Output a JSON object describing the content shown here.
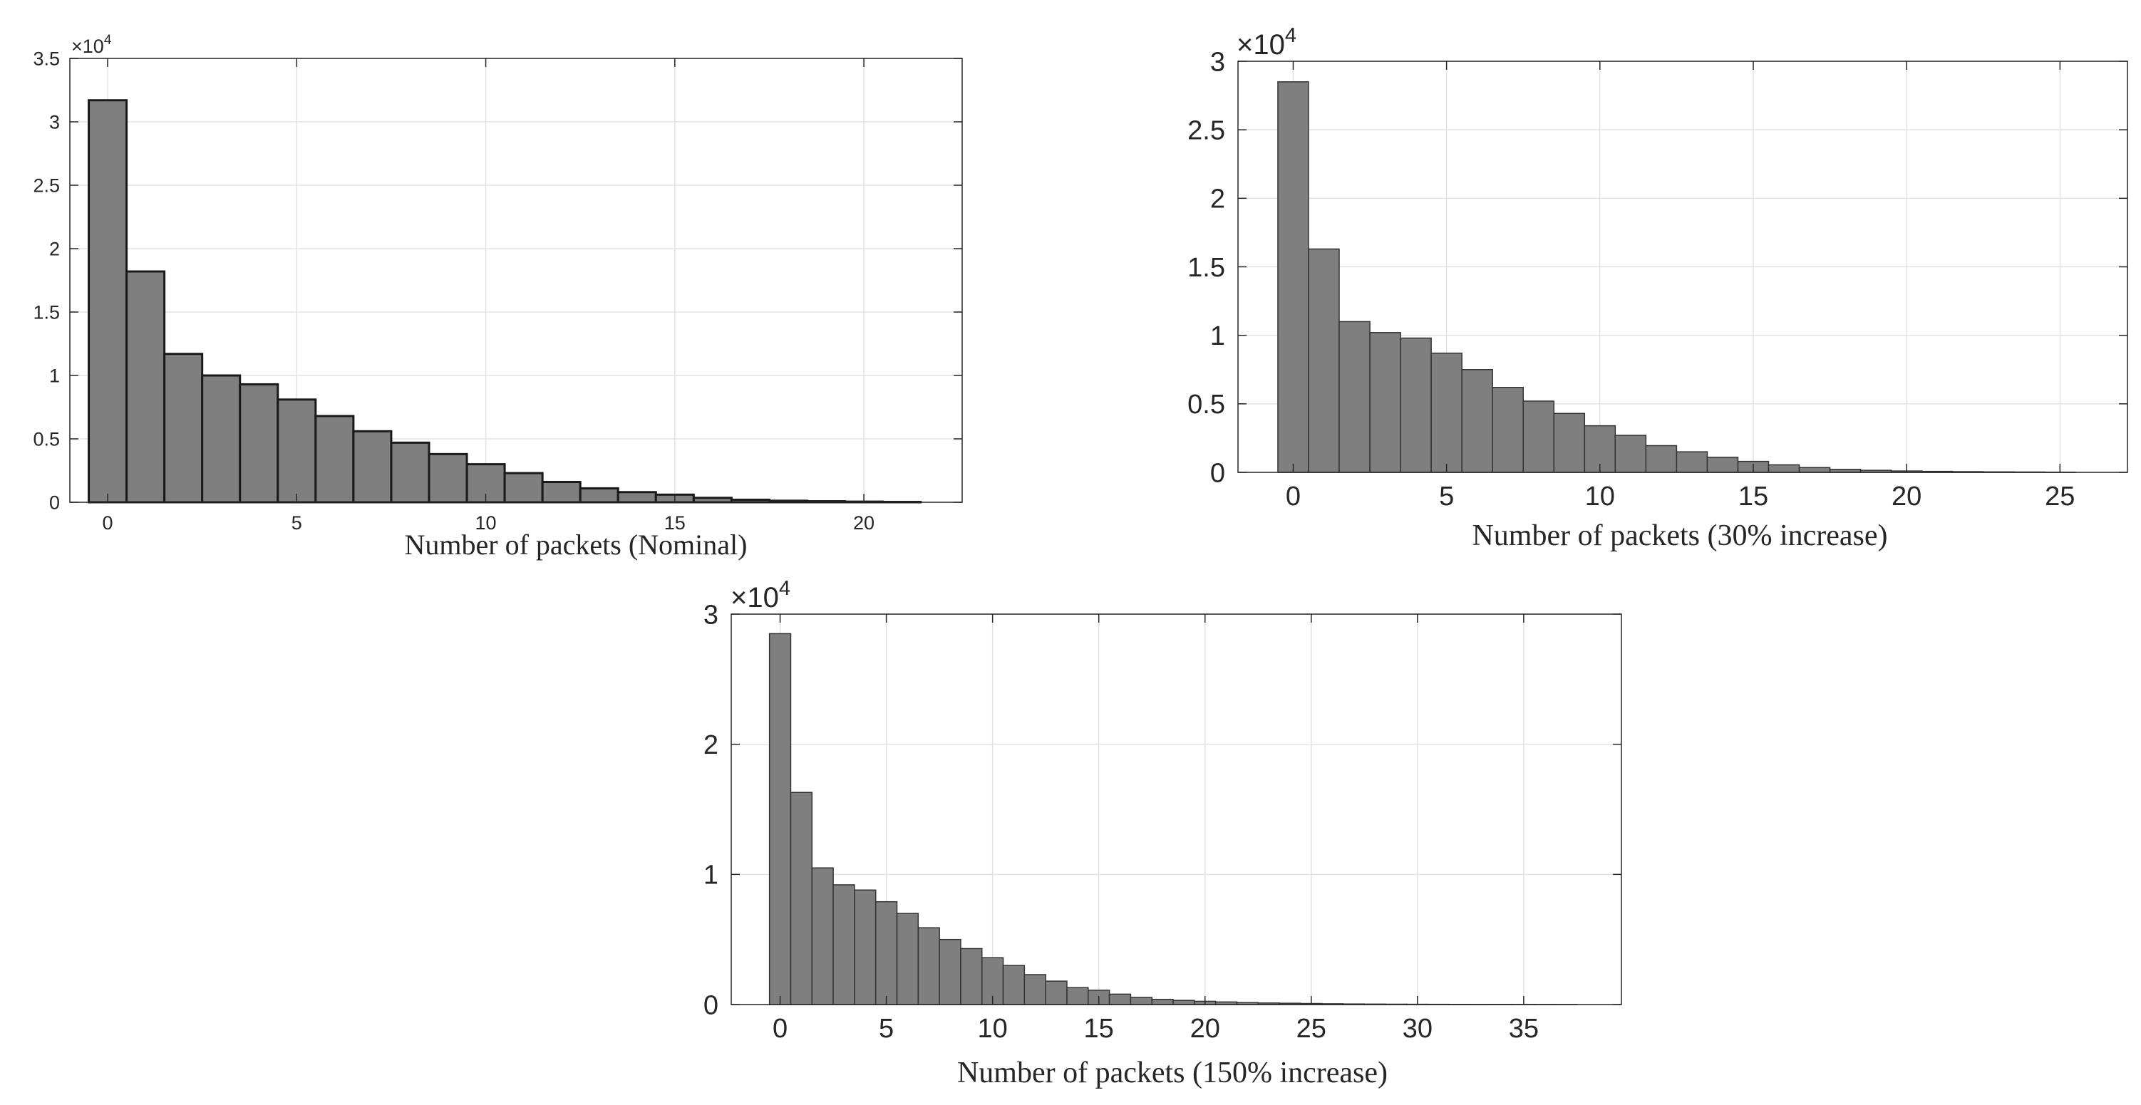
{
  "chart_data": [
    {
      "type": "bar",
      "title": "",
      "xlabel": "Number of packets (Nominal)",
      "ylabel": "",
      "exponent_label": "×10",
      "exponent_power": "4",
      "bar_color": "#7f7f7f",
      "edge_color": "#1a1a1a",
      "grid": true,
      "xlim": [
        -1,
        22.6
      ],
      "ylim": [
        0,
        35000
      ],
      "xticks": [
        0,
        5,
        10,
        15,
        20
      ],
      "xtick_labels": [
        "0",
        "5",
        "10",
        "15",
        "20"
      ],
      "yticks": [
        0,
        5000,
        10000,
        15000,
        20000,
        25000,
        30000,
        35000
      ],
      "ytick_labels": [
        "0",
        "0.5",
        "1",
        "1.5",
        "2",
        "2.5",
        "3",
        "3.5"
      ],
      "x": [
        0,
        1,
        2,
        3,
        4,
        5,
        6,
        7,
        8,
        9,
        10,
        11,
        12,
        13,
        14,
        15,
        16,
        17,
        18,
        19,
        20,
        21
      ],
      "values": [
        31700,
        18200,
        11700,
        10000,
        9300,
        8100,
        6800,
        5600,
        4700,
        3800,
        3000,
        2300,
        1600,
        1100,
        800,
        600,
        350,
        200,
        120,
        80,
        50,
        30
      ]
    },
    {
      "type": "bar",
      "title": "",
      "xlabel": "Number of packets (30% increase)",
      "ylabel": "",
      "exponent_label": "×10",
      "exponent_power": "4",
      "bar_color": "#7f7f7f",
      "edge_color": "#333333",
      "grid": true,
      "xlim": [
        -1.8,
        27.2
      ],
      "ylim": [
        0,
        30000
      ],
      "xticks": [
        0,
        5,
        10,
        15,
        20,
        25
      ],
      "xtick_labels": [
        "0",
        "5",
        "10",
        "15",
        "20",
        "25"
      ],
      "yticks": [
        0,
        5000,
        10000,
        15000,
        20000,
        25000,
        30000
      ],
      "ytick_labels": [
        "0",
        "0.5",
        "1",
        "1.5",
        "2",
        "2.5",
        "3"
      ],
      "x": [
        0,
        1,
        2,
        3,
        4,
        5,
        6,
        7,
        8,
        9,
        10,
        11,
        12,
        13,
        14,
        15,
        16,
        17,
        18,
        19,
        20,
        21,
        22,
        23,
        24,
        25
      ],
      "values": [
        28500,
        16300,
        11000,
        10200,
        9800,
        8700,
        7500,
        6200,
        5200,
        4300,
        3400,
        2700,
        1950,
        1500,
        1100,
        800,
        550,
        350,
        220,
        150,
        100,
        70,
        50,
        35,
        25,
        15
      ]
    },
    {
      "type": "bar",
      "title": "",
      "xlabel": "Number of packets (150% increase)",
      "ylabel": "",
      "exponent_label": "×10",
      "exponent_power": "4",
      "bar_color": "#7f7f7f",
      "edge_color": "#333333",
      "grid": true,
      "xlim": [
        -2.3,
        39.6
      ],
      "ylim": [
        0,
        30000
      ],
      "xticks": [
        0,
        5,
        10,
        15,
        20,
        25,
        30,
        35
      ],
      "xtick_labels": [
        "0",
        "5",
        "10",
        "15",
        "20",
        "25",
        "30",
        "35"
      ],
      "yticks": [
        0,
        10000,
        20000,
        30000
      ],
      "ytick_labels": [
        "0",
        "1",
        "2",
        "3"
      ],
      "x": [
        0,
        1,
        2,
        3,
        4,
        5,
        6,
        7,
        8,
        9,
        10,
        11,
        12,
        13,
        14,
        15,
        16,
        17,
        18,
        19,
        20,
        21,
        22,
        23,
        24,
        25,
        26,
        27,
        28,
        29,
        30,
        31,
        32,
        33,
        34,
        35,
        36,
        37
      ],
      "values": [
        28500,
        16300,
        10500,
        9200,
        8800,
        7900,
        7000,
        5900,
        5000,
        4300,
        3600,
        3000,
        2300,
        1800,
        1300,
        1100,
        800,
        550,
        400,
        320,
        250,
        200,
        150,
        120,
        100,
        80,
        60,
        45,
        35,
        28,
        22,
        18,
        14,
        11,
        9,
        7,
        5,
        4
      ]
    }
  ]
}
